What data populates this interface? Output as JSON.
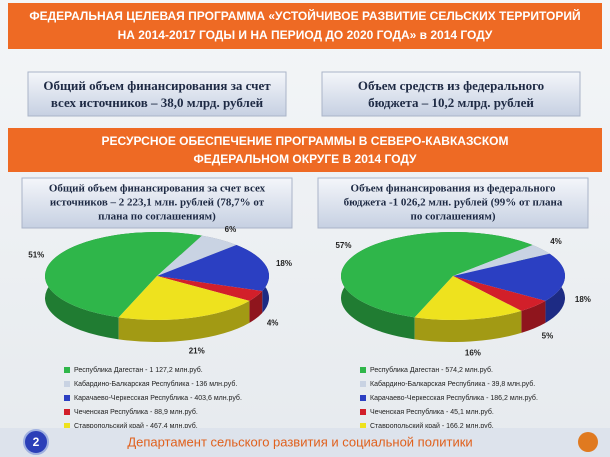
{
  "header": {
    "title_lines": [
      "ФЕДЕРАЛЬНАЯ ЦЕЛЕВАЯ ПРОГРАММА «УСТОЙЧИВОЕ РАЗВИТИЕ СЕЛЬСКИХ ТЕРРИТОРИЙ",
      "НА 2014-2017 ГОДЫ И НА ПЕРИОД ДО 2020 ГОДА» в 2014 ГОДУ"
    ]
  },
  "boxes": [
    {
      "lines": [
        "Общий объем финансирования за счет",
        "всех источников – 38,0 млрд. рублей"
      ]
    },
    {
      "lines": [
        "Объем средств из федерального",
        "бюджета – 10,2 млрд. рублей"
      ]
    }
  ],
  "section": {
    "title_lines": [
      "РЕСУРСНОЕ ОБЕСПЕЧЕНИЕ ПРОГРАММЫ В СЕВЕРО-КАВКАЗСКОМ",
      "ФЕДЕРАЛЬНОМ ОКРУГЕ В 2014 ГОДУ"
    ]
  },
  "chart_data": [
    {
      "type": "pie",
      "title": [
        "Общий объем финансирования за счет всех",
        "источников – 2 223,1 млн. рублей (78,7% от",
        "плана по соглашениям)"
      ],
      "categories": [
        "Республика Дагестан - 1 127,2 млн.руб.",
        "Кабардино-Балкарская Республика - 136 млн.руб.",
        "Карачаево-Черкесская Республика - 403,6 млн.руб.",
        "Чеченская Республика - 88,9 млн.руб.",
        "Ставропольский край - 467,4 млн.руб."
      ],
      "values": [
        51,
        6,
        18,
        4,
        21
      ],
      "value_labels": [
        "51%",
        "6%",
        "18%",
        "4%",
        "21%"
      ],
      "colors": [
        "#2fb64a",
        "#c9d3e3",
        "#2b3fc2",
        "#d21f2a",
        "#eee21e"
      ]
    },
    {
      "type": "pie",
      "title": [
        "Объем финансирования из федерального",
        "бюджета -1 026,2 млн. рублей (99% от плана",
        "по соглашениям)"
      ],
      "categories": [
        "Республика Дагестан - 574,2 млн.руб.",
        "Кабардино-Балкарская Республика - 39,8 млн.руб.",
        "Карачаево-Черкесская Республика - 186,2 млн.руб.",
        "Чеченская Республика - 45,1 млн.руб.",
        "Ставропольский край - 166,2 млн.руб."
      ],
      "values": [
        57,
        4,
        18,
        5,
        16
      ],
      "value_labels": [
        "57%",
        "4%",
        "18%",
        "5%",
        "16%"
      ],
      "colors": [
        "#2fb64a",
        "#c9d3e3",
        "#2b3fc2",
        "#d21f2a",
        "#eee21e"
      ]
    }
  ],
  "footer": {
    "page": "2",
    "text": "Департамент сельского развития и социальной политики"
  }
}
